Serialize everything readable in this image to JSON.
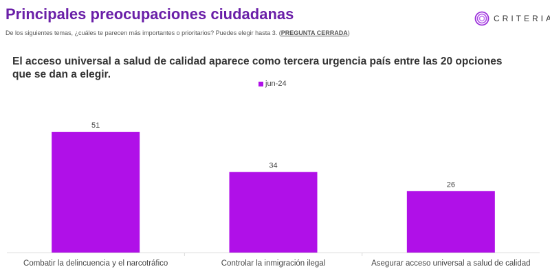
{
  "header": {
    "title": "Principales preocupaciones ciudadanas",
    "subtitle_text": "De los siguientes temas, ¿cuáles te parecen más importantes o prioritarios? Puedes elegir hasta 3. (",
    "subtitle_emphasis": "PREGUNTA CERRADA",
    "subtitle_end": ")",
    "logo": "CRITERIA"
  },
  "headline": "El acceso universal a salud de calidad aparece como tercera urgencia país entre las 20 opciones que se dan a elegir.",
  "colors": {
    "accent": "#b010e8",
    "title": "#6a1fa8"
  },
  "chart_data": {
    "type": "bar",
    "categories": [
      "Combatir la delincuencia y el narcotráfico",
      "Controlar la inmigración ilegal",
      "Asegurar acceso universal a salud de calidad"
    ],
    "series": [
      {
        "name": "jun-24",
        "values": [
          51,
          34,
          26
        ]
      }
    ],
    "ylim": [
      0,
      55
    ],
    "grid": false,
    "legend": "top-center",
    "data_labels": true
  }
}
